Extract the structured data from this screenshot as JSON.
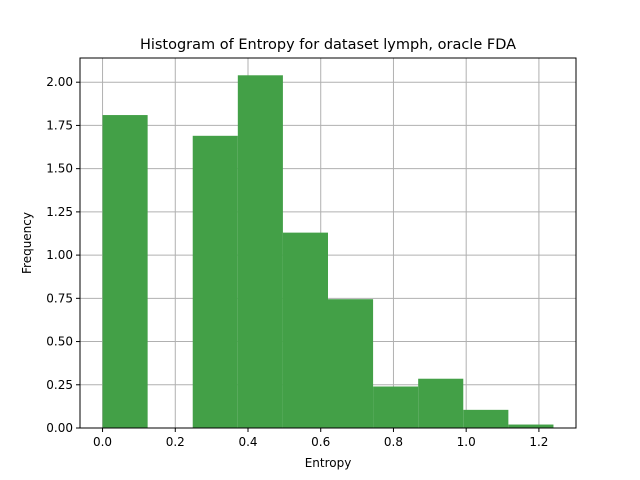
{
  "chart_data": {
    "type": "bar",
    "title": "Histogram of Entropy for dataset lymph, oracle FDA",
    "xlabel": "Entropy",
    "ylabel": "Frequency",
    "xlim": [
      -0.062,
      1.302
    ],
    "ylim": [
      0,
      2.14
    ],
    "xticks": [
      0.0,
      0.2,
      0.4,
      0.6,
      0.8,
      1.0,
      1.2
    ],
    "xtick_labels": [
      "0.0",
      "0.2",
      "0.4",
      "0.6",
      "0.8",
      "1.0",
      "1.2"
    ],
    "yticks": [
      0.0,
      0.25,
      0.5,
      0.75,
      1.0,
      1.25,
      1.5,
      1.75,
      2.0
    ],
    "ytick_labels": [
      "0.00",
      "0.25",
      "0.50",
      "0.75",
      "1.00",
      "1.25",
      "1.50",
      "1.75",
      "2.00"
    ],
    "grid": true,
    "bar_color": "#43a047",
    "bins": [
      {
        "x0": 0.0,
        "x1": 0.124,
        "value": 1.81
      },
      {
        "x0": 0.124,
        "x1": 0.248,
        "value": 0.0
      },
      {
        "x0": 0.248,
        "x1": 0.372,
        "value": 1.69
      },
      {
        "x0": 0.372,
        "x1": 0.496,
        "value": 2.04
      },
      {
        "x0": 0.496,
        "x1": 0.62,
        "value": 1.13
      },
      {
        "x0": 0.62,
        "x1": 0.744,
        "value": 0.745
      },
      {
        "x0": 0.744,
        "x1": 0.868,
        "value": 0.24
      },
      {
        "x0": 0.868,
        "x1": 0.992,
        "value": 0.285
      },
      {
        "x0": 0.992,
        "x1": 1.116,
        "value": 0.105
      },
      {
        "x0": 1.116,
        "x1": 1.24,
        "value": 0.02
      }
    ]
  }
}
